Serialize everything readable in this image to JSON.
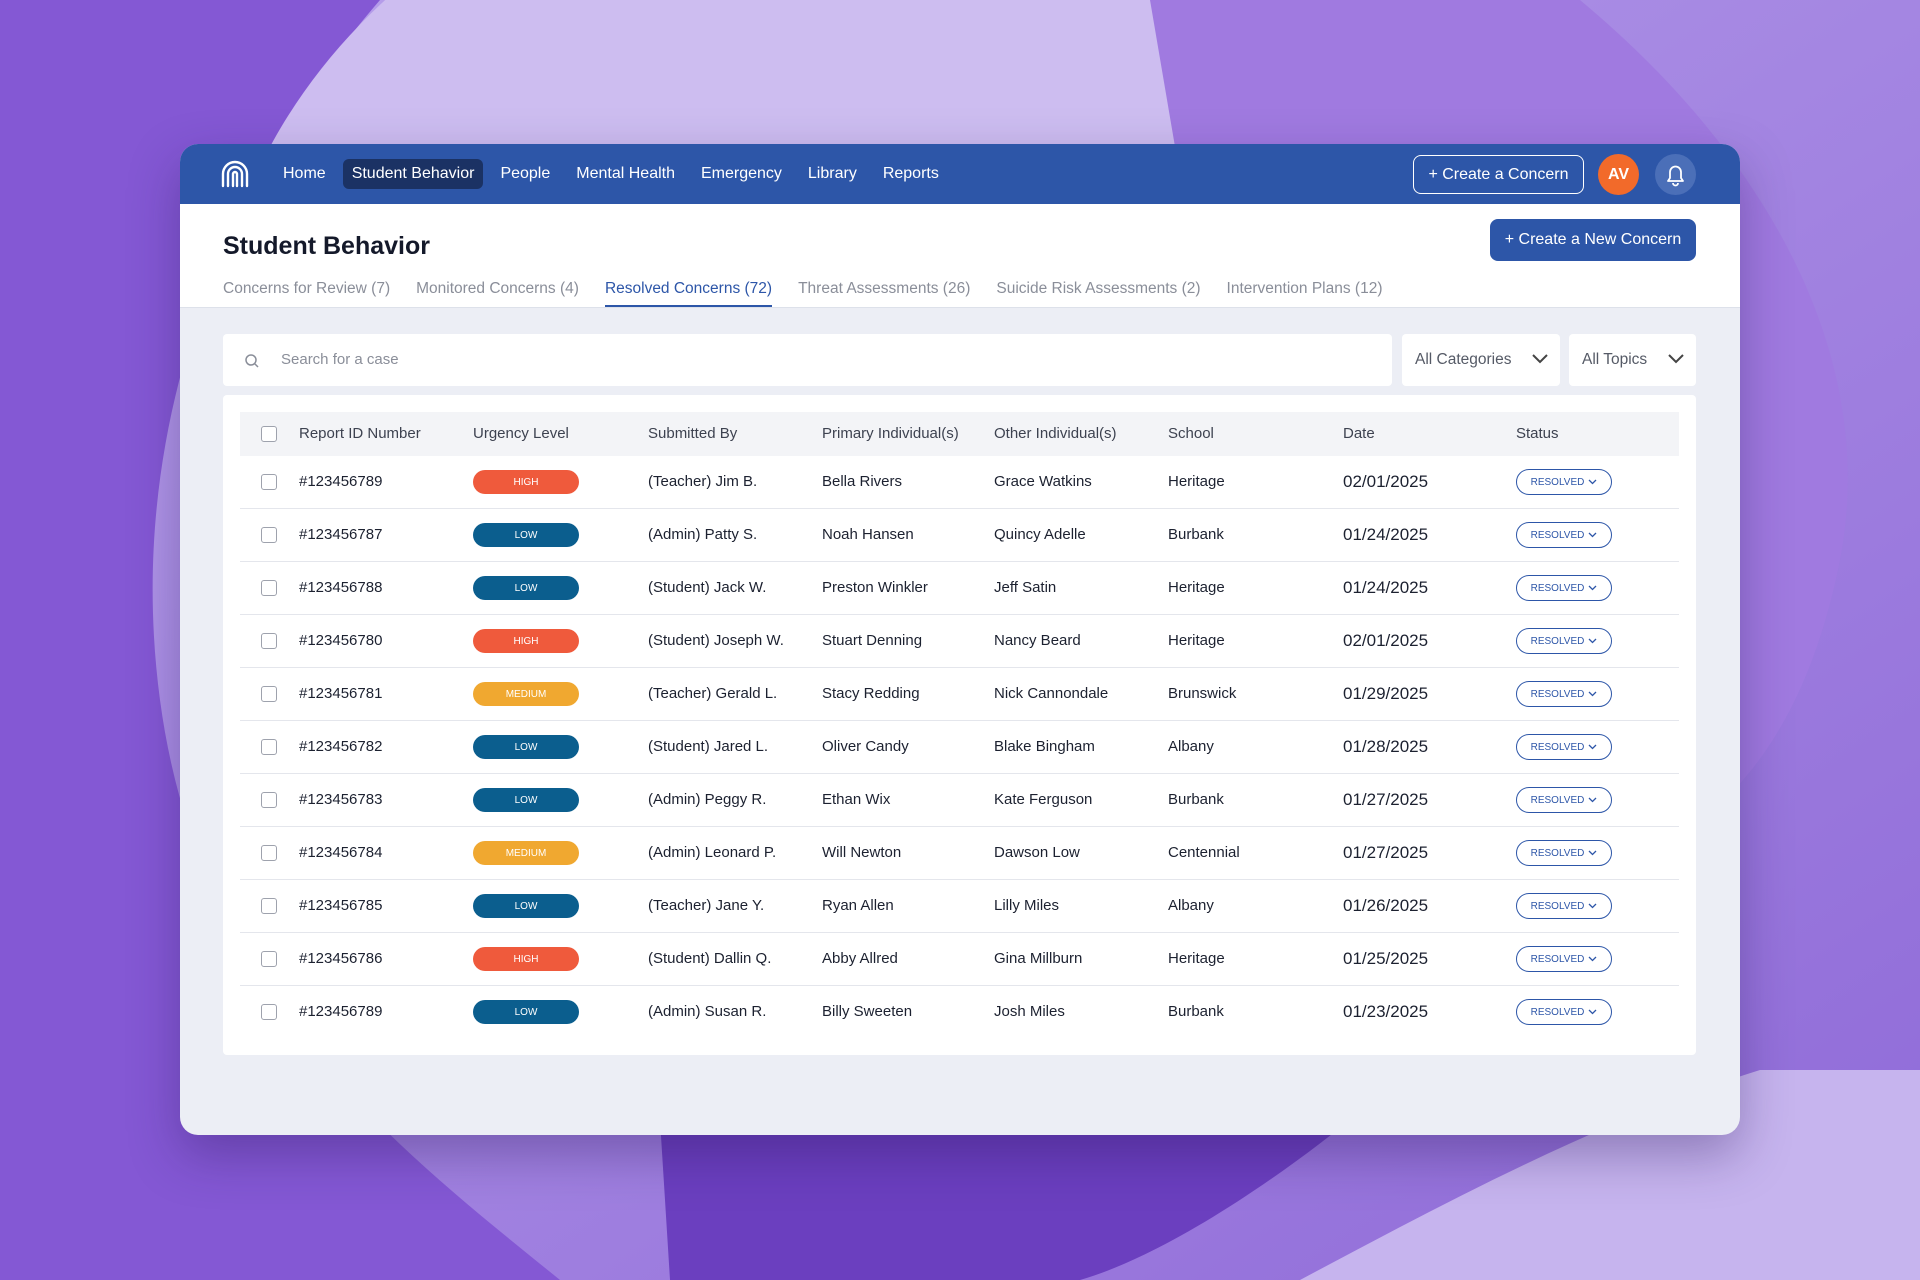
{
  "nav": {
    "items": [
      "Home",
      "Student Behavior",
      "People",
      "Mental Health",
      "Emergency",
      "Library",
      "Reports"
    ],
    "active": 1,
    "create_button": "+ Create a Concern",
    "avatar": "AV"
  },
  "header": {
    "title": "Student Behavior",
    "button": "+ Create a New Concern"
  },
  "tabs": {
    "items": [
      "Concerns for Review (7)",
      "Monitored Concerns (4)",
      "Resolved Concerns (72)",
      "Threat Assessments (26)",
      "Suicide Risk Assessments (2)",
      "Intervention Plans (12)"
    ],
    "active": 2
  },
  "filters": {
    "search_placeholder": "Search for a case",
    "categories": "All Categories",
    "topics": "All Topics"
  },
  "table": {
    "columns": [
      "Report ID Number",
      "Urgency Level",
      "Submitted By",
      "Primary Individual(s)",
      "Other Individual(s)",
      "School",
      "Date",
      "Status"
    ],
    "rows": [
      {
        "id": "#123456789",
        "urgency": "HIGH",
        "urgency_color": "#ef5a3c",
        "submitted": "(Teacher) Jim B.",
        "primary": "Bella Rivers",
        "other": "Grace Watkins",
        "school": "Heritage",
        "date": "02/01/2025",
        "status": "RESOLVED"
      },
      {
        "id": "#123456787",
        "urgency": "LOW",
        "urgency_color": "#0b5e8e",
        "submitted": "(Admin) Patty S.",
        "primary": "Noah Hansen",
        "other": "Quincy Adelle",
        "school": "Burbank",
        "date": "01/24/2025",
        "status": "RESOLVED"
      },
      {
        "id": "#123456788",
        "urgency": "LOW",
        "urgency_color": "#0b5e8e",
        "submitted": "(Student) Jack W.",
        "primary": "Preston Winkler",
        "other": "Jeff Satin",
        "school": "Heritage",
        "date": "01/24/2025",
        "status": "RESOLVED"
      },
      {
        "id": "#123456780",
        "urgency": "HIGH",
        "urgency_color": "#ef5a3c",
        "submitted": "(Student) Joseph W.",
        "primary": "Stuart Denning",
        "other": "Nancy Beard",
        "school": "Heritage",
        "date": "02/01/2025",
        "status": "RESOLVED"
      },
      {
        "id": "#123456781",
        "urgency": "MEDIUM",
        "urgency_color": "#f0a830",
        "submitted": "(Teacher) Gerald L.",
        "primary": "Stacy Redding",
        "other": "Nick Cannondale",
        "school": "Brunswick",
        "date": "01/29/2025",
        "status": "RESOLVED"
      },
      {
        "id": "#123456782",
        "urgency": "LOW",
        "urgency_color": "#0b5e8e",
        "submitted": "(Student) Jared L.",
        "primary": "Oliver Candy",
        "other": "Blake Bingham",
        "school": "Albany",
        "date": "01/28/2025",
        "status": "RESOLVED"
      },
      {
        "id": "#123456783",
        "urgency": "LOW",
        "urgency_color": "#0b5e8e",
        "submitted": "(Admin) Peggy R.",
        "primary": "Ethan Wix",
        "other": "Kate Ferguson",
        "school": "Burbank",
        "date": "01/27/2025",
        "status": "RESOLVED"
      },
      {
        "id": "#123456784",
        "urgency": "MEDIUM",
        "urgency_color": "#f0a830",
        "submitted": "(Admin) Leonard P.",
        "primary": "Will Newton",
        "other": "Dawson Low",
        "school": "Centennial",
        "date": "01/27/2025",
        "status": "RESOLVED"
      },
      {
        "id": "#123456785",
        "urgency": "LOW",
        "urgency_color": "#0b5e8e",
        "submitted": "(Teacher) Jane Y.",
        "primary": "Ryan Allen",
        "other": "Lilly Miles",
        "school": "Albany",
        "date": "01/26/2025",
        "status": "RESOLVED"
      },
      {
        "id": "#123456786",
        "urgency": "HIGH",
        "urgency_color": "#ef5a3c",
        "submitted": "(Student) Dallin Q.",
        "primary": "Abby Allred",
        "other": "Gina Millburn",
        "school": "Heritage",
        "date": "01/25/2025",
        "status": "RESOLVED"
      },
      {
        "id": "#123456789",
        "urgency": "LOW",
        "urgency_color": "#0b5e8e",
        "submitted": "(Admin) Susan R.",
        "primary": "Billy Sweeten",
        "other": "Josh Miles",
        "school": "Burbank",
        "date": "01/23/2025",
        "status": "RESOLVED"
      }
    ]
  }
}
